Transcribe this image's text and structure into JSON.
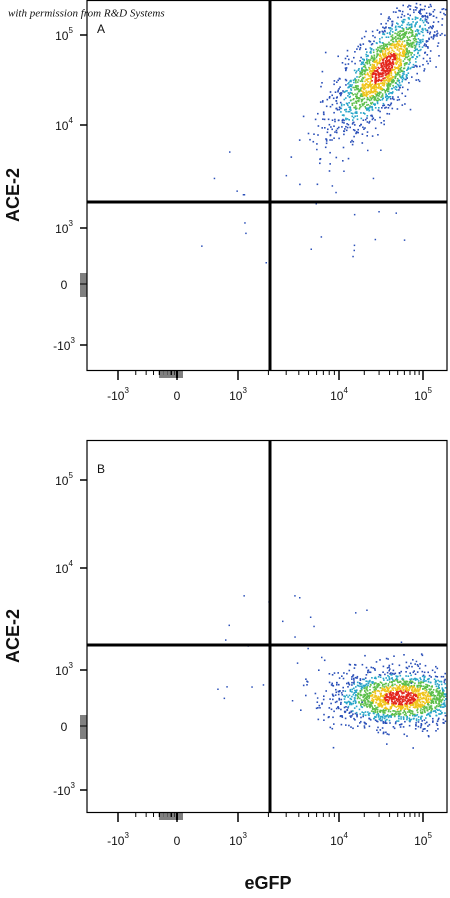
{
  "credit": "with permission from R&D Systems",
  "y_axis_label": "ACE-2",
  "x_axis_label": "eGFP",
  "panels": [
    {
      "label": "A",
      "yticks": [
        {
          "base": "10",
          "exp": "5"
        },
        {
          "base": "10",
          "exp": "4"
        },
        {
          "base": "10",
          "exp": "3"
        },
        {
          "base": "0"
        },
        {
          "base": "-10",
          "exp": "3"
        }
      ],
      "xticks": [
        {
          "base": "-10",
          "exp": "3"
        },
        {
          "base": "0"
        },
        {
          "base": "10",
          "exp": "3"
        },
        {
          "base": "10",
          "exp": "4"
        },
        {
          "base": "10",
          "exp": "5"
        }
      ]
    },
    {
      "label": "B",
      "yticks": [
        {
          "base": "10",
          "exp": "5"
        },
        {
          "base": "10",
          "exp": "4"
        },
        {
          "base": "10",
          "exp": "3"
        },
        {
          "base": "0"
        },
        {
          "base": "-10",
          "exp": "3"
        }
      ],
      "xticks": [
        {
          "base": "-10",
          "exp": "3"
        },
        {
          "base": "0"
        },
        {
          "base": "10",
          "exp": "3"
        },
        {
          "base": "10",
          "exp": "4"
        },
        {
          "base": "10",
          "exp": "5"
        }
      ]
    }
  ]
}
